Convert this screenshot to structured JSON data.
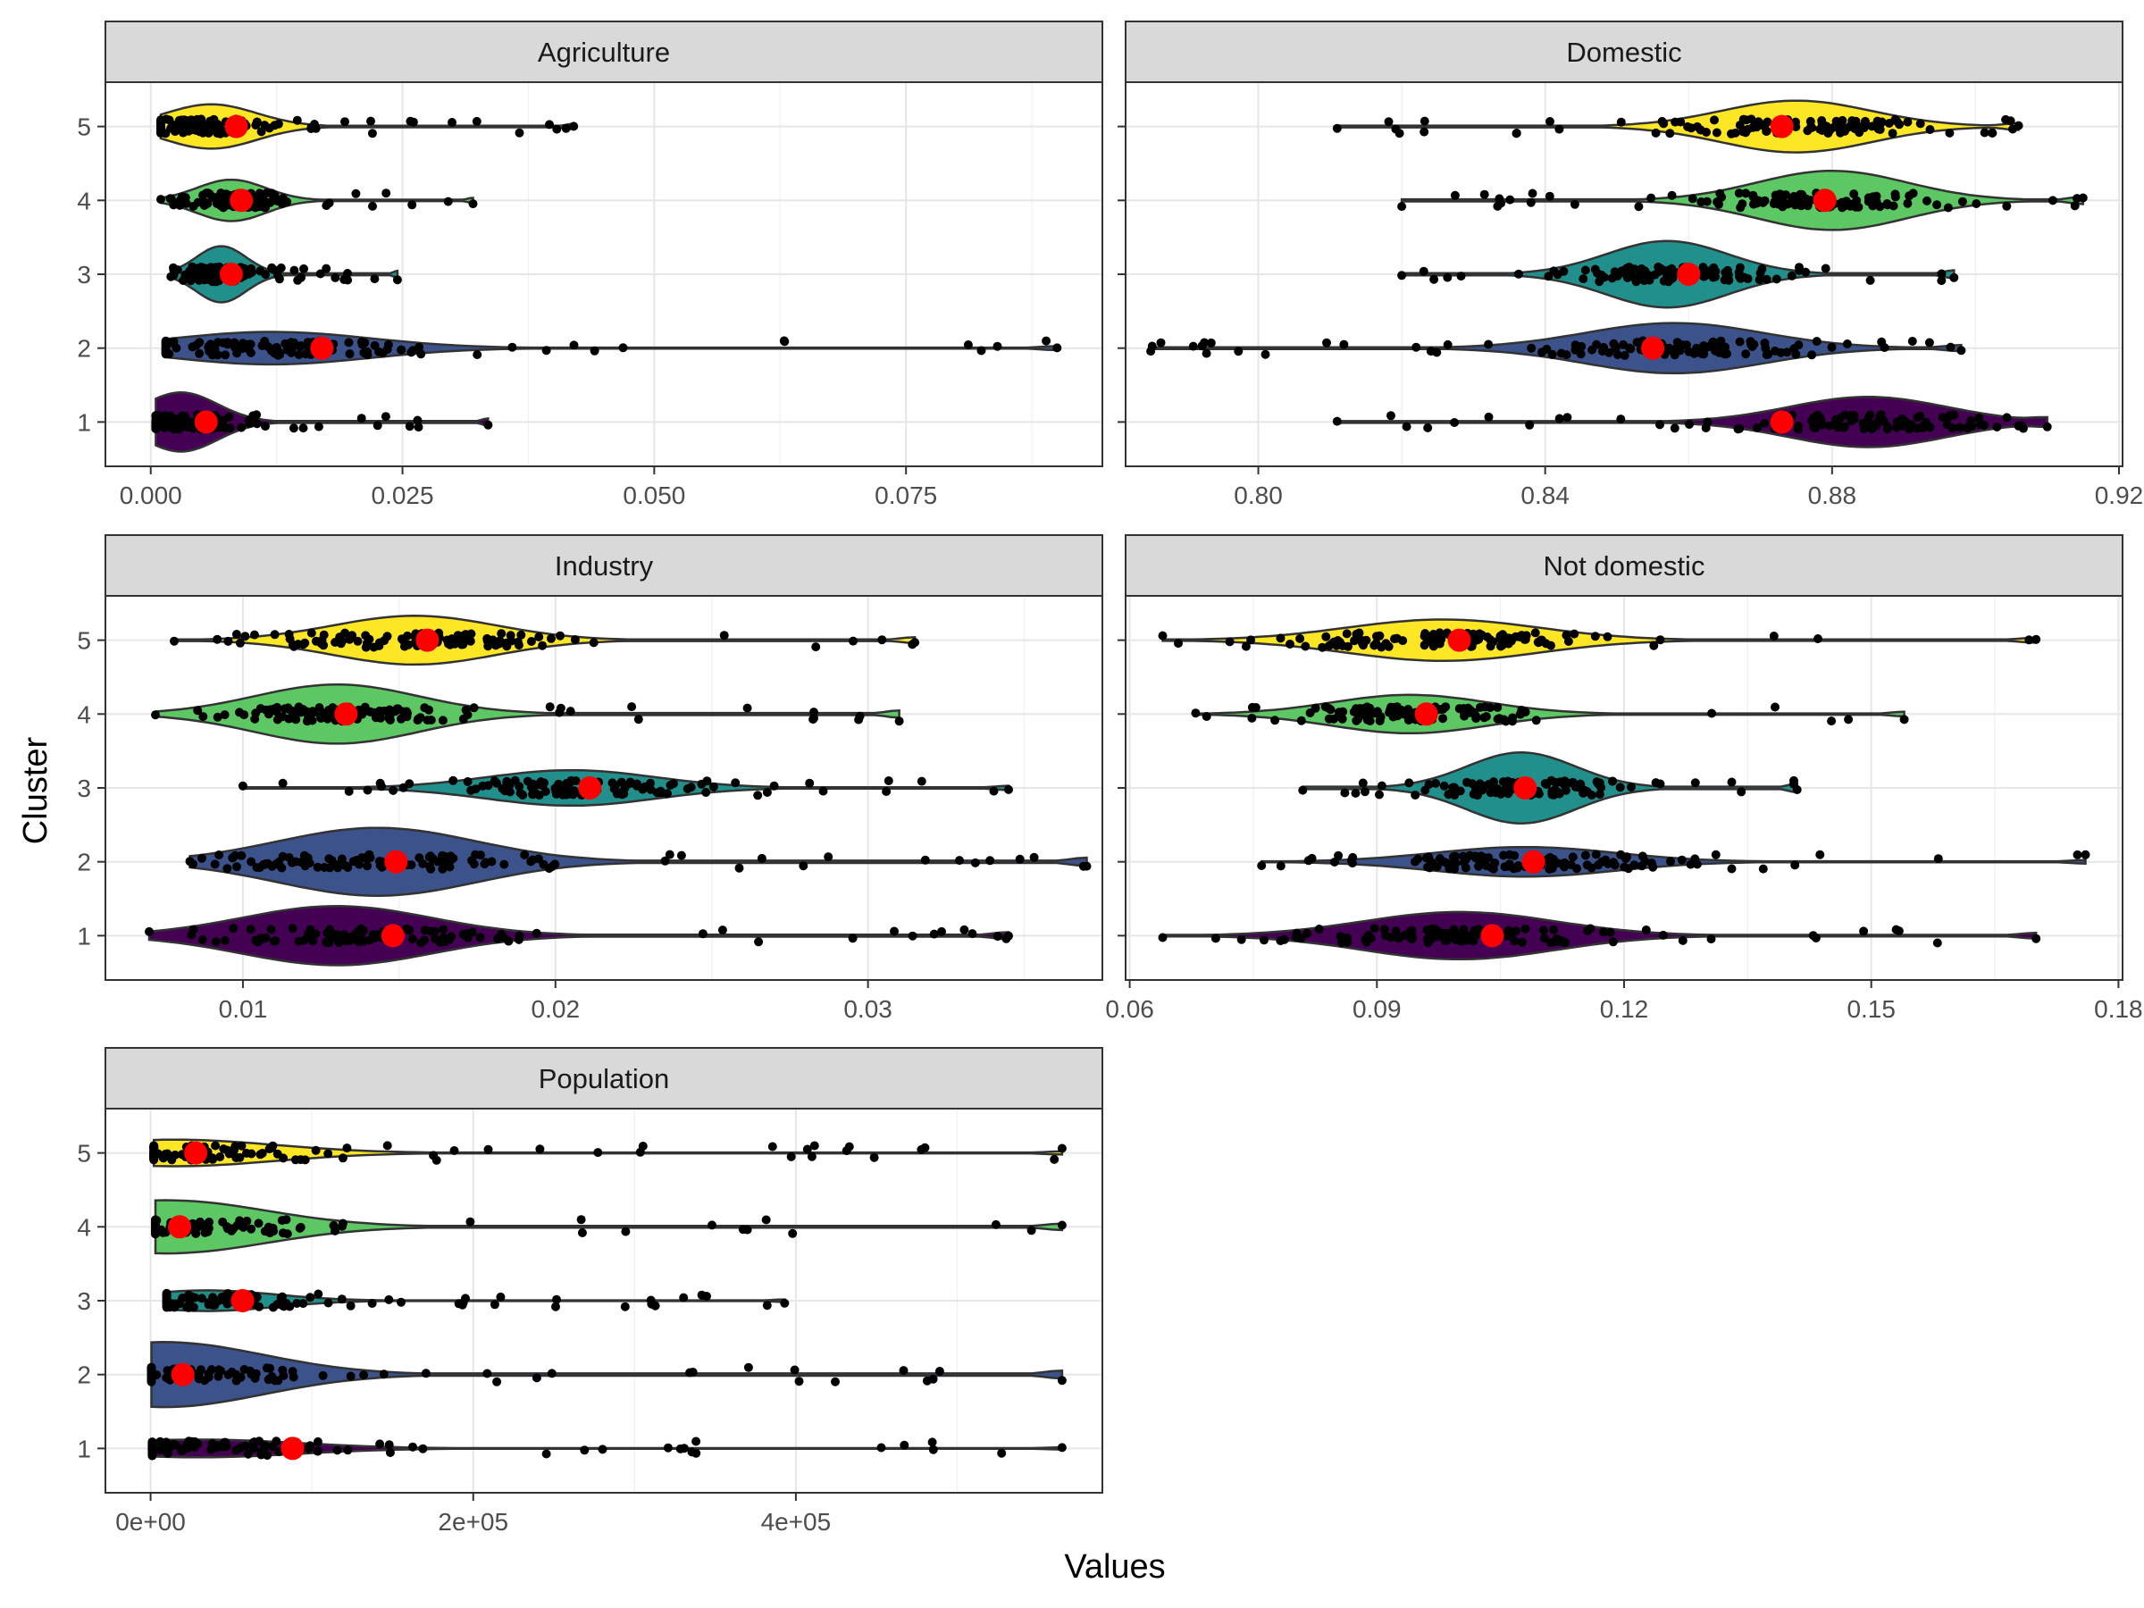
{
  "chart_data": {
    "type": "violin",
    "xlabel": "Values",
    "ylabel": "Cluster",
    "clusters": [
      "1",
      "2",
      "3",
      "4",
      "5"
    ],
    "cluster_colors": {
      "1": "#440154",
      "2": "#3b528b",
      "3": "#21908c",
      "4": "#5dc863",
      "5": "#fde725"
    },
    "mean_point_color": "#ff0000",
    "grid": true,
    "facets": [
      {
        "name": "Agriculture",
        "xlim": [
          -0.0045,
          0.0945
        ],
        "ticks": [
          0.0,
          0.025,
          0.05,
          0.075
        ],
        "tick_labels": [
          "0.000",
          "0.025",
          "0.050",
          "0.075"
        ],
        "series": [
          {
            "cluster": "1",
            "min": 0.0005,
            "max": 0.0335,
            "mean": 0.0055,
            "mode": 0.003,
            "max_halfwidth": 0.4
          },
          {
            "cluster": "2",
            "min": 0.0015,
            "max": 0.09,
            "mean": 0.017,
            "mode": 0.012,
            "max_halfwidth": 0.22
          },
          {
            "cluster": "3",
            "min": 0.002,
            "max": 0.0245,
            "mean": 0.008,
            "mode": 0.007,
            "max_halfwidth": 0.38
          },
          {
            "cluster": "4",
            "min": 0.001,
            "max": 0.032,
            "mean": 0.009,
            "mode": 0.008,
            "max_halfwidth": 0.28
          },
          {
            "cluster": "5",
            "min": 0.001,
            "max": 0.042,
            "mean": 0.0085,
            "mode": 0.006,
            "max_halfwidth": 0.3
          }
        ]
      },
      {
        "name": "Domestic",
        "xlim": [
          0.7815,
          0.9205
        ],
        "ticks": [
          0.8,
          0.84,
          0.88,
          0.92
        ],
        "tick_labels": [
          "0.80",
          "0.84",
          "0.88",
          "0.92"
        ],
        "series": [
          {
            "cluster": "1",
            "min": 0.811,
            "max": 0.91,
            "mean": 0.873,
            "mode": 0.885,
            "max_halfwidth": 0.34
          },
          {
            "cluster": "2",
            "min": 0.785,
            "max": 0.898,
            "mean": 0.855,
            "mode": 0.858,
            "max_halfwidth": 0.34
          },
          {
            "cluster": "3",
            "min": 0.82,
            "max": 0.897,
            "mean": 0.86,
            "mode": 0.857,
            "max_halfwidth": 0.45
          },
          {
            "cluster": "4",
            "min": 0.82,
            "max": 0.915,
            "mean": 0.879,
            "mode": 0.88,
            "max_halfwidth": 0.4
          },
          {
            "cluster": "5",
            "min": 0.811,
            "max": 0.906,
            "mean": 0.873,
            "mode": 0.875,
            "max_halfwidth": 0.35
          }
        ]
      },
      {
        "name": "Industry",
        "xlim": [
          0.0056,
          0.0375
        ],
        "ticks": [
          0.01,
          0.02,
          0.03
        ],
        "tick_labels": [
          "0.01",
          "0.02",
          "0.03"
        ],
        "series": [
          {
            "cluster": "1",
            "min": 0.007,
            "max": 0.0345,
            "mean": 0.0148,
            "mode": 0.013,
            "max_halfwidth": 0.4
          },
          {
            "cluster": "2",
            "min": 0.0083,
            "max": 0.037,
            "mean": 0.0149,
            "mode": 0.0143,
            "max_halfwidth": 0.46
          },
          {
            "cluster": "3",
            "min": 0.01,
            "max": 0.0345,
            "mean": 0.0211,
            "mode": 0.0205,
            "max_halfwidth": 0.24
          },
          {
            "cluster": "4",
            "min": 0.0072,
            "max": 0.031,
            "mean": 0.0133,
            "mode": 0.013,
            "max_halfwidth": 0.4
          },
          {
            "cluster": "5",
            "min": 0.0078,
            "max": 0.0315,
            "mean": 0.0159,
            "mode": 0.0155,
            "max_halfwidth": 0.33
          }
        ]
      },
      {
        "name": "Not domestic",
        "xlim": [
          0.0595,
          0.1805
        ],
        "ticks": [
          0.06,
          0.09,
          0.12,
          0.15,
          0.18
        ],
        "tick_labels": [
          "0.06",
          "0.09",
          "0.12",
          "0.15",
          "0.18"
        ],
        "series": [
          {
            "cluster": "1",
            "min": 0.064,
            "max": 0.17,
            "mean": 0.104,
            "mode": 0.1,
            "max_halfwidth": 0.32
          },
          {
            "cluster": "2",
            "min": 0.076,
            "max": 0.176,
            "mean": 0.109,
            "mode": 0.108,
            "max_halfwidth": 0.2
          },
          {
            "cluster": "3",
            "min": 0.081,
            "max": 0.141,
            "mean": 0.108,
            "mode": 0.1075,
            "max_halfwidth": 0.48
          },
          {
            "cluster": "4",
            "min": 0.068,
            "max": 0.154,
            "mean": 0.096,
            "mode": 0.094,
            "max_halfwidth": 0.26
          },
          {
            "cluster": "5",
            "min": 0.064,
            "max": 0.17,
            "mean": 0.1,
            "mode": 0.098,
            "max_halfwidth": 0.28
          }
        ]
      },
      {
        "name": "Population",
        "xlim": [
          -28000,
          590000
        ],
        "ticks": [
          0,
          200000,
          400000
        ],
        "tick_labels": [
          "0e+00",
          "2e+05",
          "4e+05"
        ],
        "series": [
          {
            "cluster": "1",
            "min": 1000,
            "max": 565000,
            "mean": 88000,
            "mode": 30000,
            "max_halfwidth": 0.12
          },
          {
            "cluster": "2",
            "min": 500,
            "max": 565000,
            "mean": 20000,
            "mode": 8000,
            "max_halfwidth": 0.44
          },
          {
            "cluster": "3",
            "min": 10000,
            "max": 393000,
            "mean": 57000,
            "mode": 35000,
            "max_halfwidth": 0.14
          },
          {
            "cluster": "4",
            "min": 3000,
            "max": 565000,
            "mean": 18000,
            "mode": 10000,
            "max_halfwidth": 0.36
          },
          {
            "cluster": "5",
            "min": 2000,
            "max": 565000,
            "mean": 28000,
            "mode": 15000,
            "max_halfwidth": 0.18
          }
        ]
      }
    ]
  }
}
